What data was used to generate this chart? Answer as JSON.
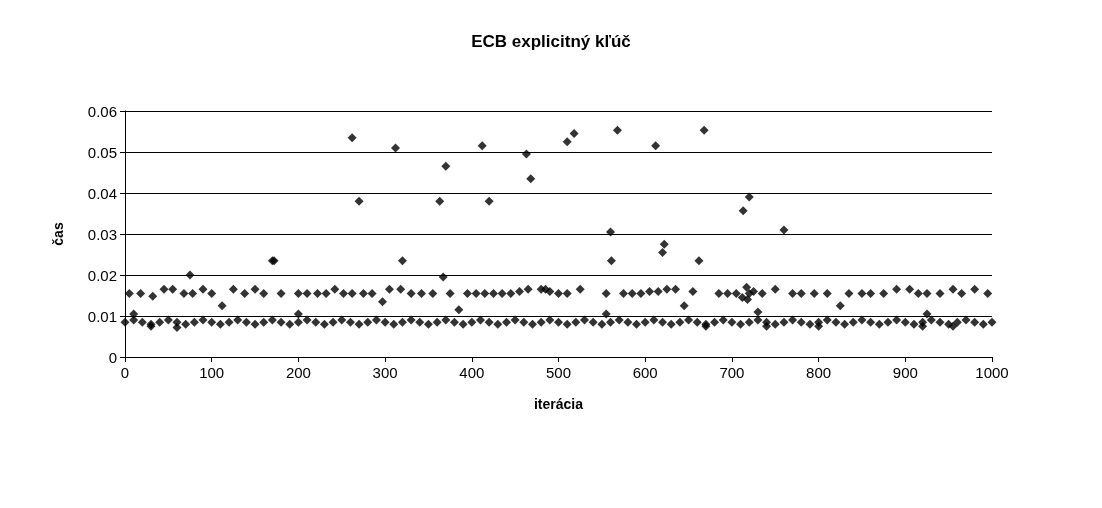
{
  "chart_data": {
    "type": "scatter",
    "title": "ECB explicitný kľúč",
    "xlabel": "iterácia",
    "ylabel": "čas",
    "xlim": [
      0,
      1000
    ],
    "xticks": [
      0,
      100,
      200,
      300,
      400,
      500,
      600,
      700,
      800,
      900,
      1000
    ],
    "ylim": [
      0,
      0.06
    ],
    "yticks": [
      0,
      0.01,
      0.02,
      0.03,
      0.04,
      0.05,
      0.06
    ],
    "grid": "y",
    "marker": "diamond",
    "series": [
      {
        "color": "#000000",
        "x": [
          262,
          270,
          312,
          320,
          363,
          367,
          370,
          412,
          420,
          463,
          468,
          510,
          518,
          560,
          561,
          568,
          612,
          620,
          622,
          662,
          668,
          713,
          720,
          760,
          170,
          172,
          75,
          717,
          718,
          5,
          18,
          32,
          45,
          55,
          68,
          78,
          90,
          100,
          112,
          125,
          138,
          150,
          160,
          180,
          200,
          210,
          222,
          232,
          242,
          252,
          262,
          275,
          285,
          297,
          305,
          318,
          330,
          342,
          355,
          375,
          385,
          395,
          405,
          415,
          425,
          435,
          445,
          455,
          465,
          480,
          485,
          490,
          500,
          510,
          525,
          555,
          575,
          585,
          595,
          605,
          615,
          625,
          635,
          645,
          655,
          685,
          695,
          705,
          712,
          720,
          725,
          735,
          750,
          770,
          780,
          795,
          810,
          825,
          835,
          850,
          860,
          875,
          890,
          905,
          915,
          925,
          940,
          955,
          965,
          980,
          995,
          10,
          30,
          60,
          200,
          555,
          670,
          730,
          740,
          800,
          920,
          925,
          955,
          0,
          10,
          20,
          30,
          40,
          50,
          60,
          70,
          80,
          90,
          100,
          110,
          120,
          130,
          140,
          150,
          160,
          170,
          180,
          190,
          200,
          210,
          220,
          230,
          240,
          250,
          260,
          270,
          280,
          290,
          300,
          310,
          320,
          330,
          340,
          350,
          360,
          370,
          380,
          390,
          400,
          410,
          420,
          430,
          440,
          450,
          460,
          470,
          480,
          490,
          500,
          510,
          520,
          530,
          540,
          550,
          560,
          570,
          580,
          590,
          600,
          610,
          620,
          630,
          640,
          650,
          660,
          670,
          680,
          690,
          700,
          710,
          720,
          730,
          740,
          750,
          760,
          770,
          780,
          790,
          800,
          810,
          820,
          830,
          840,
          850,
          860,
          870,
          880,
          890,
          900,
          910,
          920,
          930,
          940,
          950,
          960,
          970,
          980,
          990,
          1000
        ],
        "values": [
          0.0535,
          0.038,
          0.051,
          0.0235,
          0.038,
          0.0195,
          0.0465,
          0.0515,
          0.038,
          0.0495,
          0.0435,
          0.0525,
          0.0545,
          0.0305,
          0.0235,
          0.0553,
          0.0515,
          0.0255,
          0.0275,
          0.0235,
          0.0553,
          0.0357,
          0.039,
          0.031,
          0.0235,
          0.0235,
          0.02,
          0.017,
          0.014,
          0.0155,
          0.0155,
          0.0148,
          0.0165,
          0.0165,
          0.0155,
          0.0155,
          0.0165,
          0.0155,
          0.0125,
          0.0165,
          0.0155,
          0.0165,
          0.0155,
          0.0155,
          0.0155,
          0.0155,
          0.0155,
          0.0155,
          0.0165,
          0.0155,
          0.0155,
          0.0155,
          0.0155,
          0.0135,
          0.0165,
          0.0165,
          0.0155,
          0.0155,
          0.0155,
          0.0155,
          0.0115,
          0.0155,
          0.0155,
          0.0155,
          0.0155,
          0.0155,
          0.0155,
          0.016,
          0.0165,
          0.0165,
          0.0165,
          0.016,
          0.0155,
          0.0155,
          0.0165,
          0.0155,
          0.0155,
          0.0155,
          0.0155,
          0.016,
          0.016,
          0.0165,
          0.0165,
          0.0125,
          0.016,
          0.0155,
          0.0155,
          0.0155,
          0.0145,
          0.0155,
          0.016,
          0.0155,
          0.0165,
          0.0155,
          0.0155,
          0.0155,
          0.0155,
          0.0125,
          0.0155,
          0.0155,
          0.0155,
          0.0155,
          0.0165,
          0.0165,
          0.0155,
          0.0155,
          0.0155,
          0.0165,
          0.0155,
          0.0165,
          0.0155,
          0.0105,
          0.0075,
          0.0072,
          0.0105,
          0.0105,
          0.0075,
          0.011,
          0.0075,
          0.0075,
          0.0075,
          0.0105,
          0.0075,
          0.0085,
          0.009,
          0.0085,
          0.008,
          0.0085,
          0.009,
          0.0085,
          0.008,
          0.0085,
          0.009,
          0.0085,
          0.008,
          0.0085,
          0.009,
          0.0085,
          0.008,
          0.0085,
          0.009,
          0.0085,
          0.008,
          0.0085,
          0.009,
          0.0085,
          0.008,
          0.0085,
          0.009,
          0.0085,
          0.008,
          0.0085,
          0.009,
          0.0085,
          0.008,
          0.0085,
          0.009,
          0.0085,
          0.008,
          0.0085,
          0.009,
          0.0085,
          0.008,
          0.0085,
          0.009,
          0.0085,
          0.008,
          0.0085,
          0.009,
          0.0085,
          0.008,
          0.0085,
          0.009,
          0.0085,
          0.008,
          0.0085,
          0.009,
          0.0085,
          0.008,
          0.0085,
          0.009,
          0.0085,
          0.008,
          0.0085,
          0.009,
          0.0085,
          0.008,
          0.0085,
          0.009,
          0.0085,
          0.008,
          0.0085,
          0.009,
          0.0085,
          0.008,
          0.0085,
          0.009,
          0.0085,
          0.008,
          0.0085,
          0.009,
          0.0085,
          0.008,
          0.0085,
          0.009,
          0.0085,
          0.008,
          0.0085,
          0.009,
          0.0085,
          0.008,
          0.0085,
          0.009,
          0.0085,
          0.008,
          0.0085,
          0.009,
          0.0085,
          0.008,
          0.0085,
          0.009,
          0.0085,
          0.008,
          0.0085
        ]
      }
    ]
  }
}
